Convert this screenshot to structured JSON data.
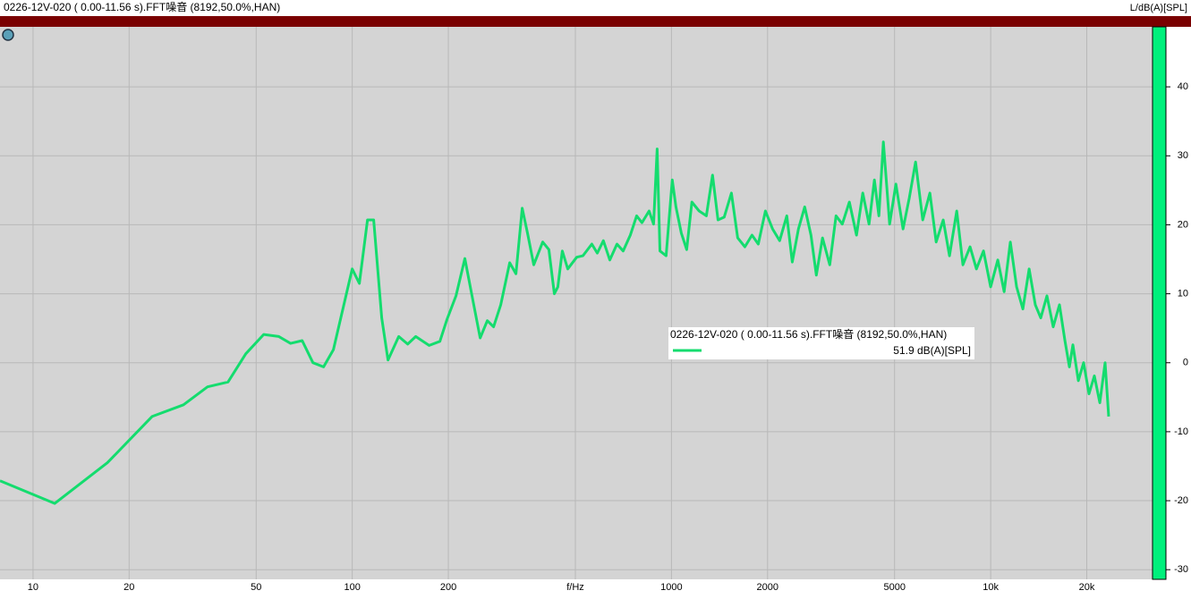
{
  "chart_data": {
    "type": "line",
    "title": "0226-12V-020 ( 0.00-11.56 s).FFT噪音 (8192,50.0%,HAN)",
    "y_label": "L/dB(A)[SPL]",
    "x_log": true,
    "grid": true,
    "xlim": [
      7.88,
      32140
    ],
    "ylim": [
      -31.4,
      48.7
    ],
    "xticks": [
      10,
      20,
      50,
      100,
      200,
      {
        "value": 500,
        "label": "f/Hz"
      },
      1000,
      2000,
      5000,
      {
        "value": 10000,
        "label": "10k"
      },
      {
        "value": 20000,
        "label": "20k"
      }
    ],
    "yticks": [
      -30,
      -20,
      -10,
      0,
      10,
      20,
      30,
      40
    ],
    "legend_value": "51.9 dB(A)[SPL]",
    "series": [
      {
        "name": "0226-12V-020 ( 0.00-11.56 s).FFT噪音 (8192,50.0%,HAN)",
        "color": "#14dc6e",
        "x": [
          7.88,
          11.7,
          17.1,
          23.6,
          29.6,
          35.2,
          40.8,
          46.4,
          52.8,
          58.9,
          64.1,
          69.7,
          75.3,
          81.3,
          87.3,
          100,
          105.3,
          111.6,
          116.7,
          123.7,
          129.4,
          139.8,
          149.2,
          158.1,
          174.2,
          188.2,
          198.2,
          211.3,
          225.3,
          237.2,
          251.6,
          264.9,
          277.2,
          291.8,
          311.3,
          325.8,
          340.7,
          354.1,
          370.3,
          395,
          413.1,
          429.7,
          440.7,
          455.1,
          473.3,
          505,
          528,
          563,
          585.5,
          612,
          641,
          675,
          706,
          743,
          778,
          808,
          851,
          879,
          902,
          920,
          962,
          1006,
          1033,
          1074,
          1116,
          1159,
          1221,
          1286,
          1345,
          1399,
          1463,
          1541,
          1612,
          1698,
          1788,
          1870,
          1969,
          2074,
          2183,
          2298,
          2390,
          2500,
          2614,
          2736,
          2843,
          2974,
          3132,
          3277,
          3428,
          3609,
          3800,
          3976,
          4160,
          4324,
          4466,
          4613,
          4826,
          5049,
          5316,
          5560,
          5817,
          6126,
          6450,
          6747,
          7103,
          7430,
          7829,
          8185,
          8622,
          9021,
          9497,
          10000,
          10530,
          11020,
          11527,
          12060,
          12615,
          13196,
          13800,
          14350,
          15010,
          15700,
          16420,
          17080,
          17640,
          18100,
          18820,
          19550,
          20330,
          21130,
          21970,
          22830,
          23430
        ],
        "values": [
          -17.1,
          -20.4,
          -14.5,
          -7.8,
          -6.1,
          -3.5,
          -2.8,
          1.3,
          4.1,
          3.8,
          2.8,
          3.2,
          0,
          -0.6,
          1.9,
          13.6,
          11.5,
          20.7,
          20.7,
          6.5,
          0.4,
          3.8,
          2.7,
          3.8,
          2.5,
          3.1,
          6.3,
          9.7,
          15.1,
          9.7,
          3.6,
          6.1,
          5.2,
          8.4,
          14.5,
          12.9,
          22.4,
          18.8,
          14.2,
          17.5,
          16.4,
          10.0,
          11.0,
          16.2,
          13.6,
          15.3,
          15.5,
          17.2,
          15.9,
          17.7,
          14.9,
          17.2,
          16.2,
          18.5,
          21.3,
          20.3,
          22.0,
          20.1,
          31.0,
          16.2,
          15.5,
          26.5,
          22.6,
          18.8,
          16.4,
          23.3,
          22.0,
          21.3,
          27.2,
          20.7,
          21.1,
          24.6,
          18.1,
          16.8,
          18.5,
          17.2,
          22.0,
          19.4,
          17.7,
          21.3,
          14.6,
          19.4,
          22.6,
          18.5,
          12.7,
          18.1,
          14.2,
          21.3,
          20.1,
          23.3,
          18.5,
          24.6,
          20.1,
          26.5,
          21.3,
          32.0,
          20.1,
          25.9,
          19.4,
          23.9,
          29.1,
          20.7,
          24.6,
          17.5,
          20.7,
          15.5,
          22.0,
          14.2,
          16.8,
          13.6,
          16.2,
          11.0,
          14.9,
          10.3,
          17.5,
          11.0,
          7.8,
          13.6,
          8.4,
          6.5,
          9.7,
          5.2,
          8.4,
          3.2,
          -0.6,
          2.6,
          -2.6,
          0,
          -4.5,
          -1.9,
          -5.8,
          0,
          -7.8
        ]
      }
    ]
  }
}
